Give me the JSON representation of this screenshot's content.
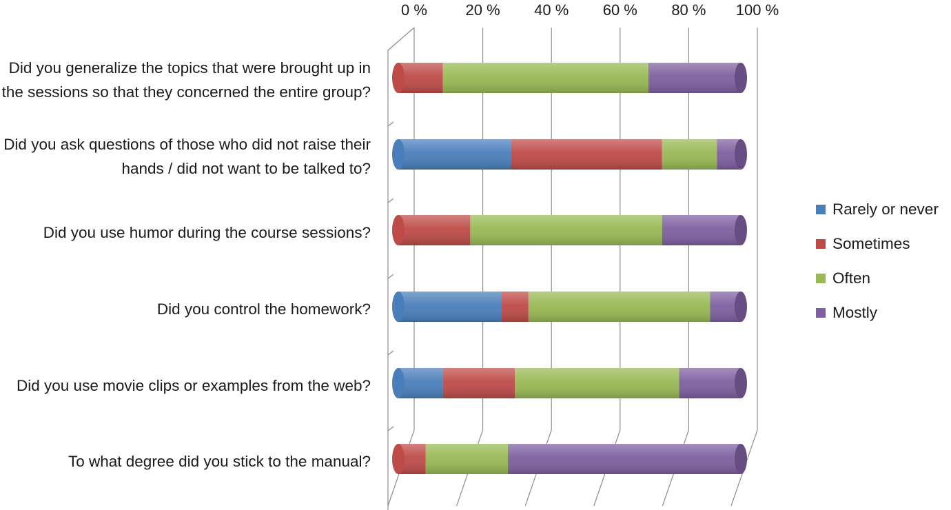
{
  "chart_data": {
    "type": "bar",
    "orientation": "horizontal",
    "stacked": true,
    "percent_stacked": true,
    "three_d": true,
    "title": "",
    "xlabel": "",
    "ylabel": "",
    "xlim": [
      0,
      100
    ],
    "x_ticks": [
      "0 %",
      "20 %",
      "40 %",
      "60 %",
      "80 %",
      "100 %"
    ],
    "x_axis_position": "top",
    "grid": true,
    "legend_position": "right",
    "categories": [
      "Did you generalize the topics that were brought up in the sessions so that they concerned the entire group?",
      "Did you ask questions of those who did not raise their hands / did not want to be talked to?",
      "Did you use humor during the course sessions?",
      "Did you control the homework?",
      "Did you use movie clips or examples from the web?",
      "To what degree did you stick to the manual?"
    ],
    "series": [
      {
        "name": "Rarely or never",
        "color": "#4a7ebb",
        "values": [
          0,
          33,
          0,
          30,
          13,
          0
        ]
      },
      {
        "name": "Sometimes",
        "color": "#be4b48",
        "values": [
          13,
          44,
          21,
          8,
          21,
          8
        ]
      },
      {
        "name": "Often",
        "color": "#98b954",
        "values": [
          60,
          16,
          56,
          53,
          48,
          24
        ]
      },
      {
        "name": "Mostly",
        "color": "#7d60a0",
        "values": [
          27,
          7,
          23,
          9,
          18,
          68
        ]
      }
    ]
  }
}
